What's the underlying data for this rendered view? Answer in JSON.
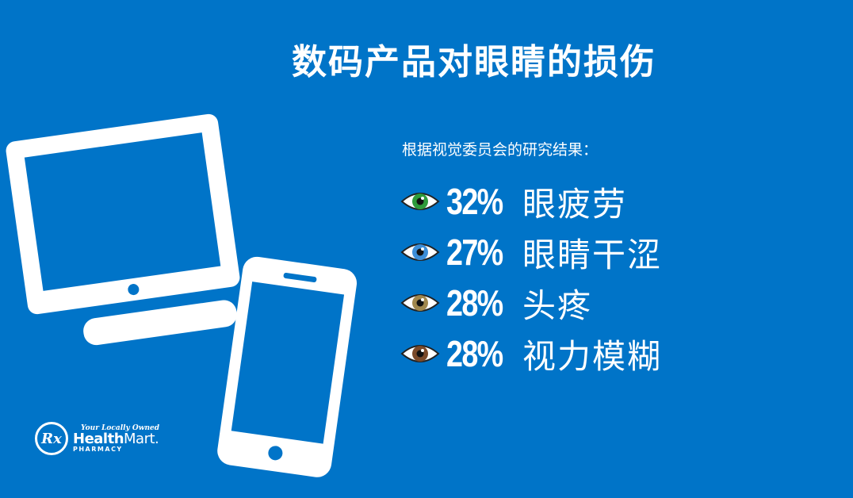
{
  "title": "数码产品对眼睛的损伤",
  "subtitle": "根据视觉委员会的研究结果：",
  "stats": [
    {
      "percent": "32%",
      "label": "眼疲劳",
      "eye_color": "green",
      "iris": "#2e9b3a"
    },
    {
      "percent": "27%",
      "label": "眼睛干涩",
      "eye_color": "blue",
      "iris": "#3c8ed8"
    },
    {
      "percent": "28%",
      "label": "头疼",
      "eye_color": "hazel",
      "iris": "#a0874d"
    },
    {
      "percent": "28%",
      "label": "视力模糊",
      "eye_color": "brown",
      "iris": "#7a4a2a"
    }
  ],
  "icons": [
    "monitor-icon",
    "smartphone-icon",
    "eye-icon"
  ],
  "logo": {
    "tagline": "Your Locally Owned",
    "brand_bold": "Health",
    "brand_light": "Mart.",
    "sub": "PHARMACY",
    "mark": "Rx"
  },
  "colors": {
    "background": "#0074c8",
    "foreground": "#ffffff"
  }
}
